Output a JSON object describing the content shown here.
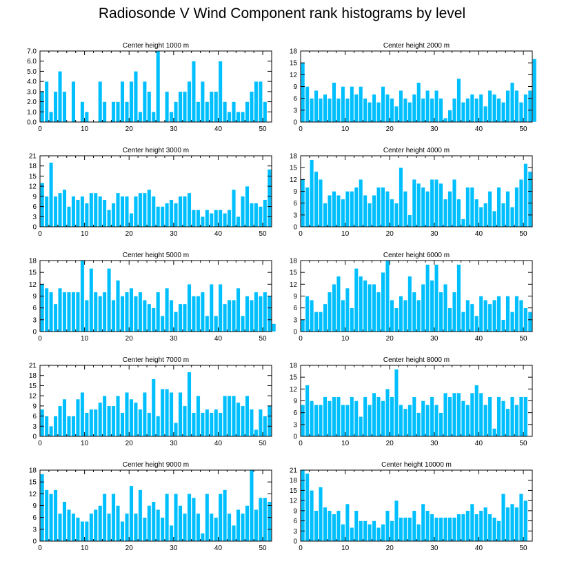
{
  "title": "Radiosonde V Wind Component rank histograms by level",
  "colors": {
    "bar": "#00bfff",
    "bar_edge": "#ffffff",
    "axis": "#000000"
  },
  "chart_data": [
    {
      "type": "bar",
      "title": "Center height 1000 m",
      "xlim": [
        0,
        52
      ],
      "ylim": [
        0,
        7
      ],
      "xticks": [
        0,
        10,
        20,
        30,
        40,
        50
      ],
      "yticks": [
        0,
        1,
        2,
        3,
        4,
        5,
        6,
        7
      ],
      "ytick_labels": [
        "0.0",
        "1.0",
        "2.0",
        "3.0",
        "4.0",
        "5.0",
        "6.0",
        "7.0"
      ],
      "values": [
        3,
        4,
        1,
        3,
        5,
        3,
        0,
        4,
        0,
        2,
        1,
        0,
        0,
        4,
        2,
        0,
        2,
        2,
        4,
        2,
        4,
        5,
        1,
        4,
        3,
        1,
        7,
        0,
        3,
        1,
        2,
        3,
        3,
        4,
        6,
        2,
        4,
        2,
        3,
        3,
        6,
        2,
        1,
        2,
        1,
        1,
        2,
        3,
        4,
        4,
        2
      ]
    },
    {
      "type": "bar",
      "title": "Center height 2000 m",
      "xlim": [
        0,
        52
      ],
      "ylim": [
        0,
        18
      ],
      "xticks": [
        0,
        10,
        20,
        30,
        40,
        50
      ],
      "yticks": [
        0,
        3,
        6,
        9,
        12,
        15,
        18
      ],
      "values": [
        15,
        9,
        6,
        8,
        6,
        7,
        6,
        10,
        6,
        9,
        6,
        9,
        7,
        9,
        6,
        5,
        7,
        5,
        9,
        7,
        6,
        4,
        8,
        6,
        5,
        7,
        10,
        6,
        8,
        6,
        8,
        6,
        1,
        3,
        6,
        11,
        5,
        6,
        7,
        6,
        7,
        4,
        8,
        7,
        6,
        5,
        8,
        10,
        8,
        5,
        7,
        8,
        16
      ]
    },
    {
      "type": "bar",
      "title": "Center height 3000 m",
      "xlim": [
        0,
        52
      ],
      "ylim": [
        0,
        21
      ],
      "xticks": [
        0,
        10,
        20,
        30,
        40,
        50
      ],
      "yticks": [
        0,
        3,
        6,
        9,
        12,
        15,
        18,
        21
      ],
      "values": [
        13,
        9,
        19,
        9,
        10,
        11,
        6,
        9,
        8,
        9,
        7,
        10,
        10,
        9,
        8,
        5,
        7,
        10,
        9,
        9,
        4,
        9,
        10,
        10,
        11,
        9,
        6,
        6,
        7,
        8,
        7,
        9,
        9,
        10,
        5,
        5,
        3,
        5,
        4,
        5,
        5,
        4,
        5,
        11,
        3,
        9,
        12,
        7,
        7,
        6,
        8,
        17
      ]
    },
    {
      "type": "bar",
      "title": "Center height 4000 m",
      "xlim": [
        0,
        52
      ],
      "ylim": [
        0,
        18
      ],
      "xticks": [
        0,
        10,
        20,
        30,
        40,
        50
      ],
      "yticks": [
        0,
        3,
        6,
        9,
        12,
        15,
        18
      ],
      "values": [
        12,
        10,
        17,
        14,
        12,
        6,
        8,
        9,
        8,
        7,
        9,
        9,
        10,
        12,
        8,
        6,
        8,
        10,
        10,
        9,
        7,
        6,
        15,
        9,
        3,
        12,
        11,
        10,
        9,
        12,
        12,
        11,
        7,
        9,
        12,
        7,
        2,
        10,
        10,
        7,
        5,
        6,
        9,
        4,
        10,
        6,
        9,
        5,
        10,
        12,
        16,
        14
      ]
    },
    {
      "type": "bar",
      "title": "Center height 5000 m",
      "xlim": [
        0,
        52
      ],
      "ylim": [
        0,
        18
      ],
      "xticks": [
        0,
        10,
        20,
        30,
        40,
        50
      ],
      "yticks": [
        0,
        3,
        6,
        9,
        12,
        15,
        18
      ],
      "values": [
        12,
        11,
        10,
        7,
        11,
        10,
        10,
        10,
        10,
        18,
        8,
        16,
        10,
        9,
        10,
        16,
        8,
        13,
        9,
        10,
        11,
        9,
        10,
        8,
        7,
        6,
        10,
        4,
        11,
        8,
        5,
        7,
        7,
        12,
        9,
        9,
        10,
        4,
        12,
        4,
        12,
        7,
        8,
        8,
        11,
        4,
        9,
        8,
        10,
        9,
        10,
        9,
        2
      ]
    },
    {
      "type": "bar",
      "title": "Center height 6000 m",
      "xlim": [
        0,
        52
      ],
      "ylim": [
        0,
        18
      ],
      "xticks": [
        0,
        10,
        20,
        30,
        40,
        50
      ],
      "yticks": [
        0,
        3,
        6,
        9,
        12,
        15,
        18
      ],
      "values": [
        3,
        9,
        8,
        5,
        5,
        7,
        10,
        12,
        14,
        8,
        11,
        6,
        16,
        14,
        13,
        12,
        12,
        10,
        15,
        18,
        8,
        6,
        9,
        8,
        14,
        10,
        8,
        12,
        17,
        13,
        17,
        10,
        12,
        6,
        10,
        17,
        5,
        8,
        7,
        4,
        9,
        8,
        7,
        8,
        9,
        3,
        9,
        5,
        9,
        8,
        6,
        5
      ]
    },
    {
      "type": "bar",
      "title": "Center height 7000 m",
      "xlim": [
        0,
        52
      ],
      "ylim": [
        0,
        21
      ],
      "xticks": [
        0,
        10,
        20,
        30,
        40,
        50
      ],
      "yticks": [
        0,
        3,
        6,
        9,
        12,
        15,
        18,
        21
      ],
      "values": [
        8,
        6,
        3,
        6,
        9,
        11,
        6,
        6,
        11,
        13,
        7,
        8,
        8,
        10,
        12,
        9,
        9,
        12,
        7,
        13,
        11,
        10,
        8,
        13,
        7,
        17,
        6,
        14,
        14,
        13,
        4,
        13,
        9,
        19,
        7,
        12,
        7,
        8,
        7,
        8,
        7,
        12,
        12,
        12,
        10,
        9,
        12,
        8,
        2,
        8,
        6,
        9
      ]
    },
    {
      "type": "bar",
      "title": "Center height 8000 m",
      "xlim": [
        0,
        52
      ],
      "ylim": [
        0,
        18
      ],
      "xticks": [
        0,
        10,
        20,
        30,
        40,
        50
      ],
      "yticks": [
        0,
        3,
        6,
        9,
        12,
        15,
        18
      ],
      "values": [
        8,
        13,
        9,
        8,
        8,
        10,
        9,
        10,
        10,
        8,
        8,
        10,
        9,
        5,
        10,
        8,
        11,
        10,
        9,
        12,
        10,
        17,
        8,
        7,
        8,
        10,
        6,
        9,
        8,
        10,
        8,
        6,
        11,
        10,
        11,
        11,
        9,
        8,
        11,
        13,
        11,
        8,
        10,
        2,
        10,
        9,
        7,
        10,
        8,
        10,
        10
      ]
    },
    {
      "type": "bar",
      "title": "Center height 9000 m",
      "xlim": [
        0,
        52
      ],
      "ylim": [
        0,
        18
      ],
      "xticks": [
        0,
        10,
        20,
        30,
        40,
        50
      ],
      "yticks": [
        0,
        3,
        6,
        9,
        12,
        15,
        18
      ],
      "values": [
        17,
        13,
        12,
        13,
        7,
        10,
        8,
        7,
        6,
        5,
        5,
        7,
        8,
        9,
        12,
        7,
        12,
        9,
        5,
        7,
        14,
        7,
        13,
        6,
        9,
        10,
        8,
        6,
        12,
        4,
        12,
        9,
        7,
        12,
        11,
        7,
        2,
        12,
        7,
        6,
        12,
        13,
        7,
        4,
        8,
        7,
        9,
        18,
        8,
        11,
        11,
        10
      ]
    },
    {
      "type": "bar",
      "title": "Center height 10000 m",
      "xlim": [
        0,
        52
      ],
      "ylim": [
        0,
        21
      ],
      "xticks": [
        0,
        10,
        20,
        30,
        40,
        50
      ],
      "yticks": [
        0,
        3,
        6,
        9,
        12,
        15,
        18,
        21
      ],
      "values": [
        21,
        20,
        15,
        9,
        16,
        10,
        9,
        8,
        9,
        5,
        11,
        4,
        9,
        6,
        6,
        5,
        6,
        4,
        5,
        9,
        6,
        12,
        7,
        7,
        7,
        9,
        5,
        11,
        9,
        8,
        7,
        7,
        7,
        7,
        7,
        8,
        8,
        9,
        11,
        8,
        9,
        10,
        8,
        7,
        6,
        14,
        10,
        11,
        10,
        14,
        12
      ]
    }
  ]
}
